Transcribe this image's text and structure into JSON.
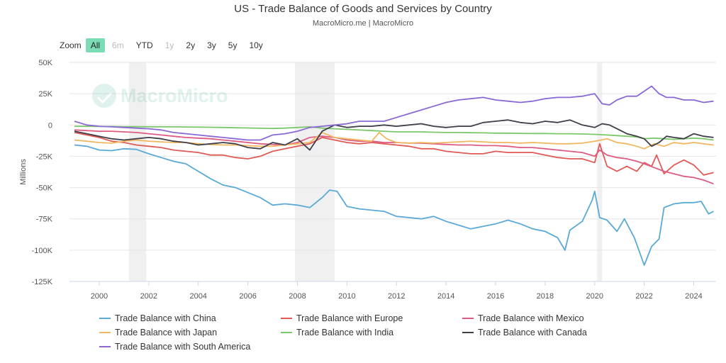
{
  "chart_data": {
    "type": "line",
    "title": "US - Trade Balance of Goods and Services by Country",
    "subtitle": "MacroMicro.me | MacroMicro",
    "ylabel": "Millions",
    "xlabel": "",
    "xlim": [
      1998.8,
      2024.9
    ],
    "ylim": [
      -125000,
      50000
    ],
    "yticks": [
      50000,
      25000,
      0,
      -25000,
      -50000,
      -75000,
      -100000,
      -125000
    ],
    "ytick_labels": [
      "50K",
      "25K",
      "0",
      "-25K",
      "-50K",
      "-75K",
      "-100K",
      "-125K"
    ],
    "xticks": [
      2000,
      2002,
      2004,
      2006,
      2008,
      2010,
      2012,
      2014,
      2016,
      2018,
      2020,
      2022,
      2024
    ],
    "xtick_labels": [
      "2000",
      "2002",
      "2004",
      "2006",
      "2008",
      "2010",
      "2012",
      "2014",
      "2016",
      "2018",
      "2020",
      "2022",
      "2024"
    ],
    "grid": true,
    "legend_position": "bottom",
    "recession_bands": [
      [
        2001.2,
        2001.9
      ],
      [
        2007.9,
        2009.5
      ],
      [
        2020.1,
        2020.3
      ]
    ],
    "series": [
      {
        "name": "Trade Balance with China",
        "color": "#5aa9d6",
        "x": [
          1999,
          1999.5,
          2000,
          2000.5,
          2001,
          2001.5,
          2002,
          2002.5,
          2003,
          2003.5,
          2004,
          2004.5,
          2005,
          2005.5,
          2006,
          2006.5,
          2007,
          2007.5,
          2008,
          2008.5,
          2009,
          2009.3,
          2009.6,
          2010,
          2010.5,
          2011,
          2011.5,
          2012,
          2012.5,
          2013,
          2013.5,
          2014,
          2014.5,
          2015,
          2015.5,
          2016,
          2016.5,
          2017,
          2017.5,
          2018,
          2018.5,
          2018.8,
          2019,
          2019.5,
          2019.9,
          2020.0,
          2020.2,
          2020.5,
          2020.9,
          2021.2,
          2021.6,
          2022.0,
          2022.3,
          2022.6,
          2022.8,
          2023.2,
          2023.6,
          2024.0,
          2024.3,
          2024.6,
          2024.8
        ],
        "values": [
          -16000,
          -17000,
          -20000,
          -20500,
          -19000,
          -19500,
          -23000,
          -26000,
          -29000,
          -31000,
          -37000,
          -43000,
          -48000,
          -50000,
          -54000,
          -58000,
          -64000,
          -63000,
          -64000,
          -66000,
          -58000,
          -52000,
          -53000,
          -65000,
          -67000,
          -68000,
          -69000,
          -73000,
          -74000,
          -75000,
          -73000,
          -77000,
          -80000,
          -83000,
          -81000,
          -79000,
          -76000,
          -79000,
          -83000,
          -85000,
          -90000,
          -100000,
          -84000,
          -77000,
          -60000,
          -53000,
          -74000,
          -76000,
          -85000,
          -75000,
          -90000,
          -112000,
          -97000,
          -91000,
          -66000,
          -63000,
          -62000,
          -62000,
          -61000,
          -71000,
          -69000
        ]
      },
      {
        "name": "Trade Balance with Europe",
        "color": "#e05a56",
        "x": [
          1999,
          1999.5,
          2000,
          2000.5,
          2001,
          2001.5,
          2002,
          2002.5,
          2003,
          2003.5,
          2004,
          2004.5,
          2005,
          2005.5,
          2006,
          2006.5,
          2007,
          2007.5,
          2008,
          2008.5,
          2009,
          2009.5,
          2010,
          2010.5,
          2011,
          2011.5,
          2012,
          2012.5,
          2013,
          2013.5,
          2014,
          2014.5,
          2015,
          2015.5,
          2016,
          2016.5,
          2017,
          2017.5,
          2018,
          2018.5,
          2019,
          2019.5,
          2020.0,
          2020.2,
          2020.5,
          2020.9,
          2021.3,
          2021.7,
          2022.0,
          2022.3,
          2022.5,
          2022.8,
          2023.2,
          2023.6,
          2024.0,
          2024.4,
          2024.8
        ],
        "values": [
          -6000,
          -8000,
          -10000,
          -13000,
          -14000,
          -16000,
          -17000,
          -18000,
          -20000,
          -21000,
          -22000,
          -24000,
          -24000,
          -26000,
          -27000,
          -25000,
          -21000,
          -19000,
          -17000,
          -15000,
          -10000,
          -12000,
          -14000,
          -15000,
          -14000,
          -15000,
          -16000,
          -17000,
          -19000,
          -19000,
          -21000,
          -22000,
          -23000,
          -23000,
          -21000,
          -22000,
          -22000,
          -22000,
          -24000,
          -26000,
          -27000,
          -27000,
          -30000,
          -15000,
          -33000,
          -37000,
          -33000,
          -37000,
          -30000,
          -33000,
          -24000,
          -39000,
          -32000,
          -28000,
          -32000,
          -40000,
          -38000
        ]
      },
      {
        "name": "Trade Balance with Mexico",
        "color": "#de5b82",
        "x": [
          1999,
          1999.5,
          2000,
          2000.5,
          2001,
          2001.5,
          2002,
          2002.5,
          2003,
          2003.5,
          2004,
          2004.5,
          2005,
          2005.5,
          2006,
          2006.5,
          2007,
          2007.5,
          2008,
          2008.5,
          2009,
          2009.5,
          2010,
          2010.5,
          2011,
          2011.5,
          2012,
          2012.5,
          2013,
          2013.5,
          2014,
          2014.5,
          2015,
          2015.5,
          2016,
          2016.5,
          2017,
          2017.5,
          2018,
          2018.5,
          2019,
          2019.5,
          2020.0,
          2020.2,
          2020.5,
          2020.9,
          2021.3,
          2021.7,
          2022.0,
          2022.4,
          2022.8,
          2023.2,
          2023.6,
          2024.0,
          2024.4,
          2024.8
        ],
        "values": [
          -4000,
          -4500,
          -5000,
          -5000,
          -5500,
          -6000,
          -7000,
          -8000,
          -9000,
          -10000,
          -10500,
          -11000,
          -12000,
          -13000,
          -14000,
          -15000,
          -15500,
          -16000,
          -14000,
          -10000,
          -9000,
          -10000,
          -12000,
          -13000,
          -13000,
          -14000,
          -14000,
          -14500,
          -14500,
          -15000,
          -15500,
          -16000,
          -16000,
          -16500,
          -16500,
          -17000,
          -18000,
          -18000,
          -19000,
          -20000,
          -21000,
          -22000,
          -25000,
          -20000,
          -24000,
          -26000,
          -27000,
          -29000,
          -31000,
          -34000,
          -37000,
          -39000,
          -41000,
          -42000,
          -44000,
          -47000
        ]
      },
      {
        "name": "Trade Balance with Japan",
        "color": "#f0b860",
        "x": [
          1999,
          1999.5,
          2000,
          2000.5,
          2001,
          2001.5,
          2002,
          2002.5,
          2003,
          2003.5,
          2004,
          2004.5,
          2005,
          2005.5,
          2006,
          2006.5,
          2007,
          2007.5,
          2008,
          2008.5,
          2009,
          2009.5,
          2010,
          2010.5,
          2011,
          2011.3,
          2011.6,
          2012,
          2012.5,
          2013,
          2013.5,
          2014,
          2014.5,
          2015,
          2015.5,
          2016,
          2016.5,
          2017,
          2017.5,
          2018,
          2018.5,
          2019,
          2019.5,
          2020.0,
          2020.5,
          2020.9,
          2021.3,
          2021.7,
          2022.0,
          2022.4,
          2022.8,
          2023.2,
          2023.6,
          2024.0,
          2024.4,
          2024.8
        ],
        "values": [
          -12000,
          -13000,
          -14000,
          -14500,
          -13000,
          -12000,
          -13000,
          -13500,
          -14000,
          -14000,
          -15000,
          -15500,
          -16000,
          -16000,
          -16500,
          -17000,
          -17000,
          -16000,
          -15000,
          -14000,
          -6000,
          -10000,
          -11000,
          -12000,
          -13000,
          -6000,
          -11000,
          -14000,
          -14500,
          -14000,
          -14500,
          -14000,
          -13500,
          -13000,
          -13500,
          -14000,
          -14000,
          -14500,
          -14000,
          -14500,
          -15000,
          -15000,
          -14500,
          -13000,
          -11000,
          -14000,
          -15000,
          -17000,
          -19000,
          -15000,
          -17000,
          -14000,
          -15000,
          -14000,
          -15000,
          -16000
        ]
      },
      {
        "name": "Trade Balance with India",
        "color": "#7cc76b",
        "x": [
          1999,
          1999.5,
          2000,
          2000.5,
          2001,
          2001.5,
          2002,
          2002.5,
          2003,
          2003.5,
          2004,
          2004.5,
          2005,
          2005.5,
          2006,
          2006.5,
          2007,
          2007.5,
          2008,
          2008.5,
          2009,
          2009.5,
          2010,
          2010.5,
          2011,
          2011.5,
          2012,
          2012.5,
          2013,
          2013.5,
          2014,
          2014.5,
          2015,
          2015.5,
          2016,
          2016.5,
          2017,
          2017.5,
          2018,
          2018.5,
          2019,
          2019.5,
          2020.0,
          2020.5,
          2020.9,
          2021.3,
          2021.7,
          2022.0,
          2022.4,
          2022.8,
          2023.2,
          2023.6,
          2024.0,
          2024.4,
          2024.8
        ],
        "values": [
          -1000,
          -1100,
          -1200,
          -1200,
          -1300,
          -1300,
          -1400,
          -1500,
          -1500,
          -1600,
          -1700,
          -1800,
          -2000,
          -2200,
          -2400,
          -2600,
          -2800,
          -2500,
          -2000,
          -1500,
          -2500,
          -3000,
          -3500,
          -4000,
          -4500,
          -5000,
          -5500,
          -5500,
          -5500,
          -5800,
          -6000,
          -6000,
          -6200,
          -6300,
          -6500,
          -6500,
          -6700,
          -6800,
          -6800,
          -7000,
          -7000,
          -7200,
          -7500,
          -8000,
          -8500,
          -9000,
          -9500,
          -11000,
          -10500,
          -11000,
          -11500,
          -11000,
          -10500,
          -11000,
          -12000
        ]
      },
      {
        "name": "Trade Balance with Canada",
        "color": "#3f3f4a",
        "x": [
          1999,
          1999.5,
          2000,
          2000.5,
          2001,
          2001.5,
          2002,
          2002.5,
          2003,
          2003.5,
          2004,
          2004.5,
          2005,
          2005.5,
          2006,
          2006.5,
          2007,
          2007.5,
          2008,
          2008.5,
          2009,
          2009.5,
          2010,
          2010.5,
          2011,
          2011.5,
          2012,
          2012.5,
          2013,
          2013.5,
          2014,
          2014.5,
          2015,
          2015.5,
          2016,
          2016.5,
          2017,
          2017.5,
          2018,
          2018.5,
          2019,
          2019.5,
          2020.0,
          2020.3,
          2020.6,
          2020.9,
          2021.3,
          2021.7,
          2022.0,
          2022.3,
          2022.6,
          2022.9,
          2023.2,
          2023.6,
          2024.0,
          2024.4,
          2024.8
        ],
        "values": [
          -5000,
          -7000,
          -9000,
          -11000,
          -12000,
          -11000,
          -10000,
          -11000,
          -13000,
          -14000,
          -16000,
          -15000,
          -14000,
          -15000,
          -18000,
          -19000,
          -14000,
          -16000,
          -11000,
          -20000,
          -5000,
          0,
          -2000,
          -1000,
          -1000,
          0,
          -1000,
          0,
          1000,
          -1000,
          -2000,
          -1000,
          -1000,
          2000,
          3000,
          4000,
          2000,
          1000,
          3000,
          2000,
          4000,
          0,
          -2000,
          1000,
          0,
          -3000,
          -7000,
          -9000,
          -11000,
          -17000,
          -14000,
          -9000,
          -10000,
          -11000,
          -7000,
          -9000,
          -10000
        ]
      },
      {
        "name": "Trade Balance with South America",
        "color": "#8a69d4",
        "x": [
          1999,
          1999.5,
          2000,
          2000.5,
          2001,
          2001.5,
          2002,
          2002.5,
          2003,
          2003.5,
          2004,
          2004.5,
          2005,
          2005.5,
          2006,
          2006.5,
          2007,
          2007.5,
          2008,
          2008.5,
          2009,
          2009.5,
          2010,
          2010.5,
          2011,
          2011.5,
          2012,
          2012.5,
          2013,
          2013.5,
          2014,
          2014.5,
          2015,
          2015.5,
          2016,
          2016.5,
          2017,
          2017.5,
          2018,
          2018.5,
          2019,
          2019.5,
          2020.0,
          2020.3,
          2020.6,
          2020.9,
          2021.3,
          2021.7,
          2022.0,
          2022.3,
          2022.6,
          2022.9,
          2023.2,
          2023.6,
          2024.0,
          2024.4,
          2024.8
        ],
        "values": [
          3000,
          0,
          -1000,
          -1500,
          -2000,
          -2500,
          -3000,
          -4000,
          -6000,
          -7000,
          -8000,
          -9000,
          -10000,
          -11000,
          -12000,
          -12000,
          -8000,
          -7000,
          -5000,
          -2000,
          -1000,
          0,
          1000,
          3000,
          3000,
          3000,
          6000,
          9000,
          12000,
          15000,
          18000,
          20000,
          21000,
          22000,
          20000,
          19000,
          18000,
          19000,
          21000,
          22000,
          22000,
          23000,
          25000,
          17000,
          16000,
          20000,
          23000,
          23000,
          27000,
          31000,
          25000,
          22000,
          22000,
          20000,
          20000,
          18000,
          19000
        ]
      }
    ]
  },
  "zoom": {
    "label": "Zoom",
    "buttons": [
      "All",
      "6m",
      "YTD",
      "1y",
      "2y",
      "3y",
      "5y",
      "10y"
    ],
    "active": "All",
    "disabled": [
      "6m",
      "1y"
    ]
  },
  "watermark": {
    "text": "MacroMicro",
    "icon": "macromicro-logo-icon"
  }
}
